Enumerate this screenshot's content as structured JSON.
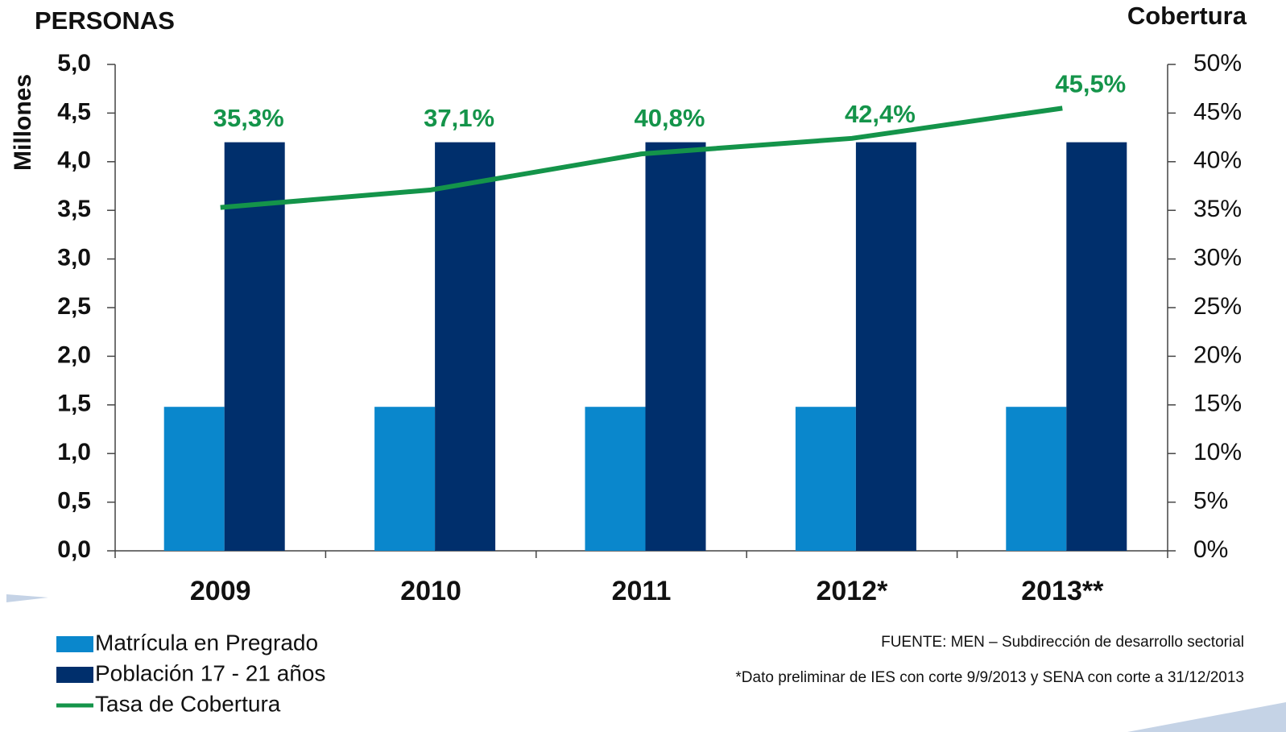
{
  "chart_data": {
    "type": "bar",
    "y_title": "PERSONAS",
    "y2_title": "Cobertura",
    "ylabel": "Millones",
    "categories": [
      "2009",
      "2010",
      "2011",
      "2012*",
      "2013**"
    ],
    "series": [
      {
        "name": "Matrícula en Pregrado",
        "color": "#0a87cc",
        "values": [
          1.48,
          1.48,
          1.48,
          1.48,
          1.48
        ]
      },
      {
        "name": "Población 17 - 21 años",
        "color": "#002f6c",
        "values": [
          4.2,
          4.2,
          4.2,
          4.2,
          4.2
        ]
      },
      {
        "name": "Tasa de Cobertura",
        "type": "line",
        "axis": "y2",
        "color": "#14944a",
        "values": [
          35.3,
          37.1,
          40.8,
          42.4,
          45.5
        ],
        "value_labels": [
          "35,3%",
          "37,1%",
          "40,8%",
          "42,4%",
          "45,5%"
        ]
      }
    ],
    "ylim": [
      0,
      5
    ],
    "yticks": [
      {
        "value": 0,
        "label": "0,0"
      },
      {
        "value": 0.5,
        "label": "0,5"
      },
      {
        "value": 1,
        "label": "1,0"
      },
      {
        "value": 1.5,
        "label": "1,5"
      },
      {
        "value": 2,
        "label": "2,0"
      },
      {
        "value": 2.5,
        "label": "2,5"
      },
      {
        "value": 3,
        "label": "3,0"
      },
      {
        "value": 3.5,
        "label": "3,5"
      },
      {
        "value": 4,
        "label": "4,0"
      },
      {
        "value": 4.5,
        "label": "4,5"
      },
      {
        "value": 5,
        "label": "5,0"
      }
    ],
    "y2lim": [
      0,
      50
    ],
    "y2ticks": [
      {
        "value": 0,
        "label": "0%"
      },
      {
        "value": 5,
        "label": "5%"
      },
      {
        "value": 10,
        "label": "10%"
      },
      {
        "value": 15,
        "label": "15%"
      },
      {
        "value": 20,
        "label": "20%"
      },
      {
        "value": 25,
        "label": "25%"
      },
      {
        "value": 30,
        "label": "30%"
      },
      {
        "value": 35,
        "label": "35%"
      },
      {
        "value": 40,
        "label": "40%"
      },
      {
        "value": 45,
        "label": "45%"
      },
      {
        "value": 50,
        "label": "50%"
      }
    ],
    "notes": [
      "FUENTE: MEN – Subdirección de desarrollo sectorial",
      "*Dato preliminar de IES con corte 9/9/2013 y SENA con corte a 31/12/2013"
    ]
  }
}
